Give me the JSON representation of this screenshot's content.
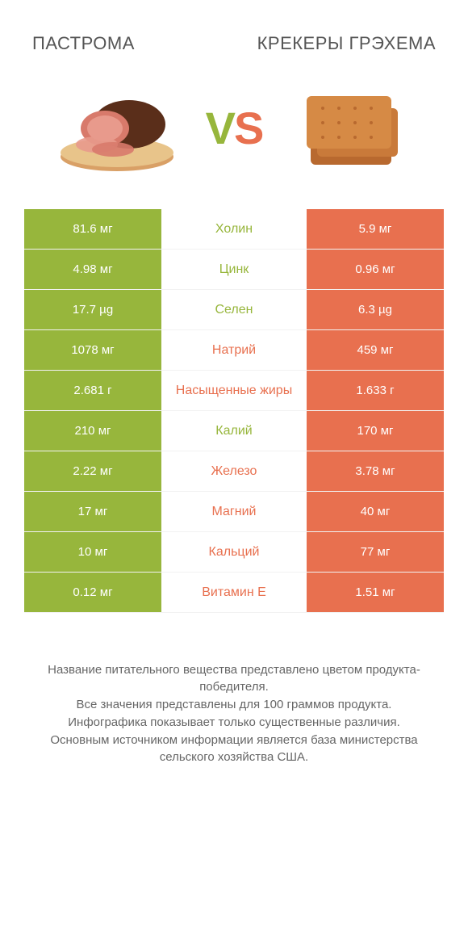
{
  "colors": {
    "green": "#97b63c",
    "orange": "#e8704f",
    "text_gray": "#555",
    "note_gray": "#666",
    "bg": "#ffffff"
  },
  "header": {
    "left_title": "ПАСТРОМА",
    "right_title": "КРЕКЕРЫ ГРЭХЕМА",
    "vs_v": "V",
    "vs_s": "S"
  },
  "comparison": {
    "type": "table",
    "rows": [
      {
        "left": "81.6 мг",
        "label": "Холин",
        "right": "5.9 мг",
        "winner": "left"
      },
      {
        "left": "4.98 мг",
        "label": "Цинк",
        "right": "0.96 мг",
        "winner": "left"
      },
      {
        "left": "17.7 µg",
        "label": "Селен",
        "right": "6.3 µg",
        "winner": "left"
      },
      {
        "left": "1078 мг",
        "label": "Натрий",
        "right": "459 мг",
        "winner": "right"
      },
      {
        "left": "2.681 г",
        "label": "Насыщенные жиры",
        "right": "1.633 г",
        "winner": "right"
      },
      {
        "left": "210 мг",
        "label": "Калий",
        "right": "170 мг",
        "winner": "left"
      },
      {
        "left": "2.22 мг",
        "label": "Железо",
        "right": "3.78 мг",
        "winner": "right"
      },
      {
        "left": "17 мг",
        "label": "Магний",
        "right": "40 мг",
        "winner": "right"
      },
      {
        "left": "10 мг",
        "label": "Кальций",
        "right": "77 мг",
        "winner": "right"
      },
      {
        "left": "0.12 мг",
        "label": "Витамин E",
        "right": "1.51 мг",
        "winner": "right"
      }
    ]
  },
  "footnote": {
    "line1": "Название питательного вещества представлено цветом продукта-победителя.",
    "line2": "Все значения представлены для 100 граммов продукта.",
    "line3": "Инфографика показывает только существенные различия.",
    "line4": "Основным источником информации является база министерства сельского хозяйства США."
  }
}
